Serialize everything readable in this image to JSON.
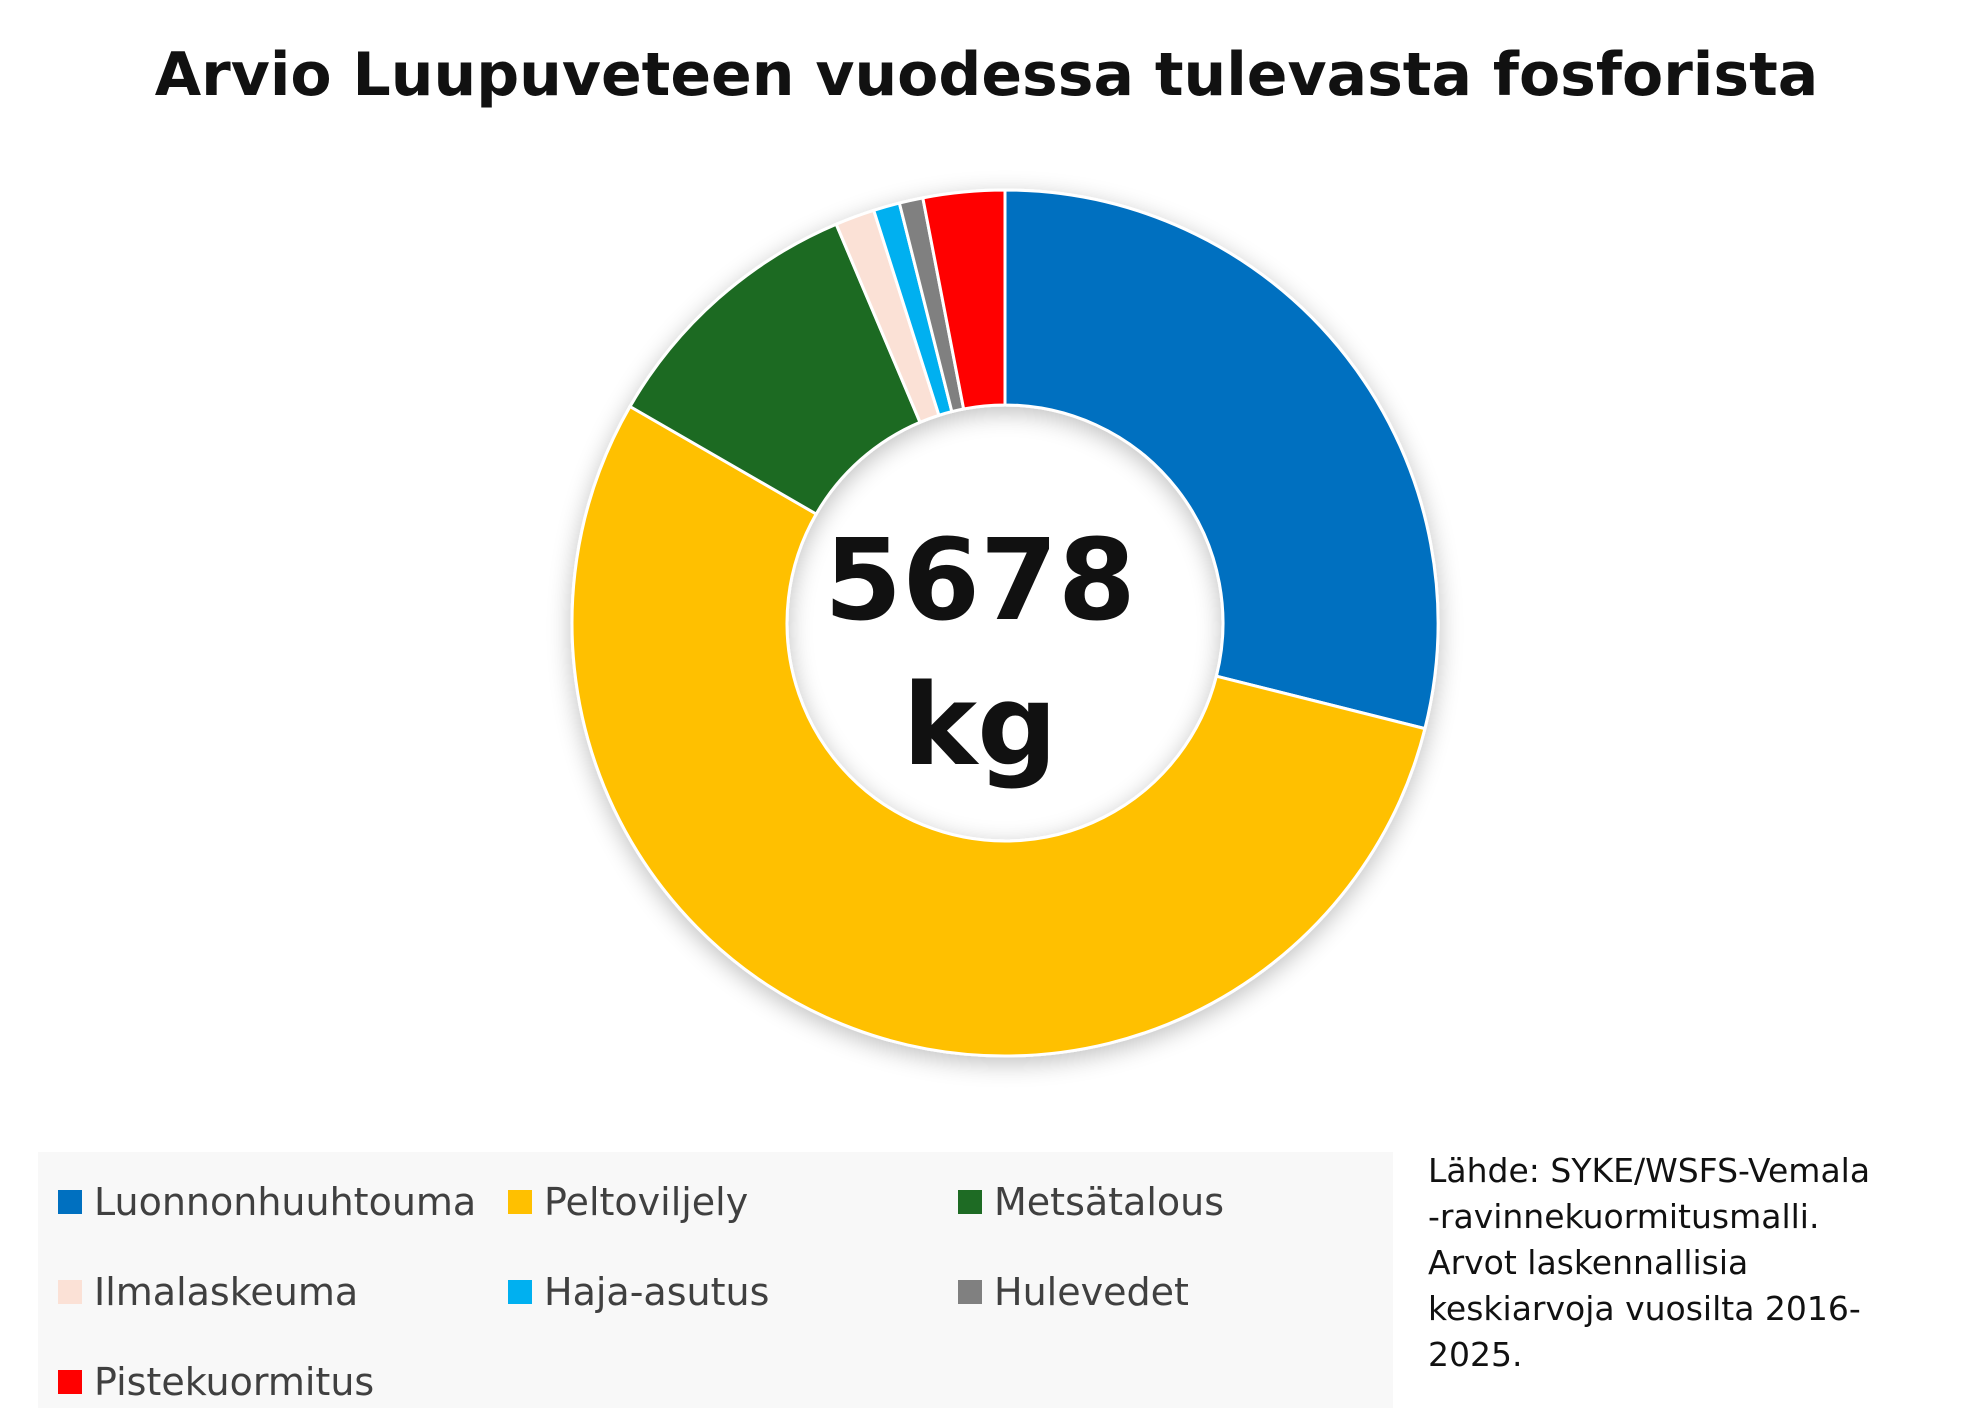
{
  "title": "Arvio Luupuveteen vuodessa tulevasta fosforista",
  "center": {
    "value": "5678",
    "unit": "kg"
  },
  "chart_data": {
    "type": "pie",
    "variant": "donut",
    "title": "Arvio Luupuveteen vuodessa tulevasta fosforista",
    "total_label": "5678 kg",
    "unit": "%",
    "start_angle": "12 o'clock, clockwise",
    "categories": [
      "Luonnonhuuhtouma",
      "Peltoviljely",
      "Metsätalous",
      "Ilmalaskeuma",
      "Haja-asutus",
      "Hulevedet",
      "Pistekuormitus"
    ],
    "values": [
      29.5,
      55.5,
      10.5,
      1.5,
      1.0,
      0.9,
      3.1
    ],
    "colors": [
      "#0070c0",
      "#ffc000",
      "#1e6b24",
      "#fbe1d6",
      "#00b0f0",
      "#808080",
      "#ff0000"
    ],
    "legend_position": "bottom"
  },
  "legend": {
    "items": [
      {
        "label": "Luonnonhuuhtouma",
        "color": "#0070c0"
      },
      {
        "label": "Peltoviljely",
        "color": "#ffc000"
      },
      {
        "label": "Metsätalous",
        "color": "#1e6b24"
      },
      {
        "label": "Ilmalaskeuma",
        "color": "#fbe1d6"
      },
      {
        "label": "Haja-asutus",
        "color": "#00b0f0"
      },
      {
        "label": "Hulevedet",
        "color": "#808080"
      },
      {
        "label": "Pistekuormitus",
        "color": "#ff0000"
      }
    ]
  },
  "source_note": {
    "lines": [
      "Lähde: SYKE/WSFS-Vemala",
      "-ravinnekuormitusmalli.",
      "Arvot laskennallisia",
      "keskiarvoja vuosilta 2016-",
      "2025."
    ]
  }
}
